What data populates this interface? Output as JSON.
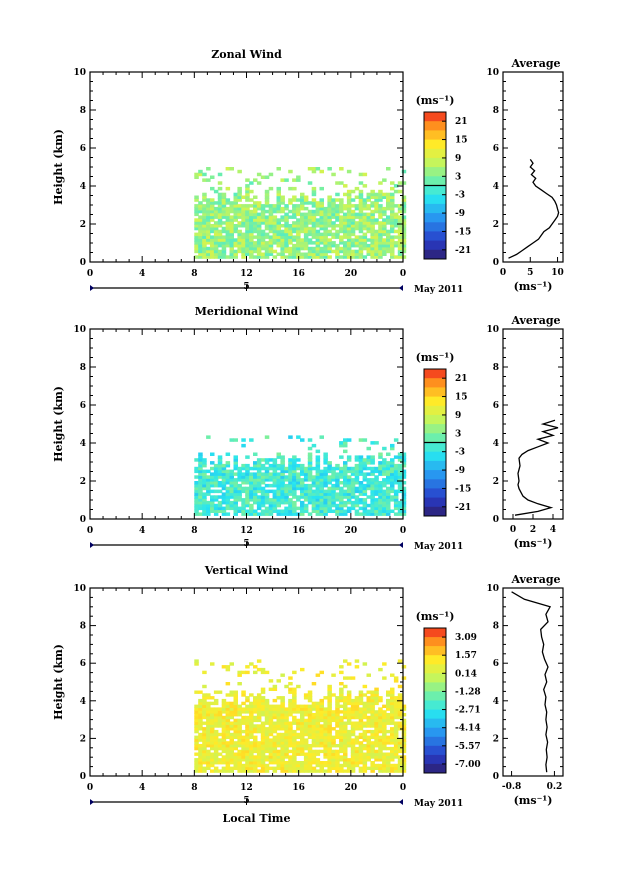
{
  "chart_data": [
    {
      "type": "heatmap",
      "title": "Zonal Wind",
      "xlabel": "",
      "ylabel": "Height (km)",
      "xlim": [
        0,
        24
      ],
      "ylim": [
        0,
        10
      ],
      "x_ticks": [
        "0",
        "4",
        "8",
        "12",
        "16",
        "20",
        "0"
      ],
      "y_ticks": [
        "0",
        "2",
        "4",
        "6",
        "8",
        "10"
      ],
      "date_axis_label": "5",
      "date_caption": "May 2011",
      "colorbar_unit": "(ms⁻¹)",
      "colorbar_ticks": [
        "21",
        "15",
        "9",
        "3",
        "-3",
        "-9",
        "-15",
        "-21"
      ],
      "colorbar_range": [
        -24,
        24
      ],
      "data_extent": {
        "x": [
          8,
          24
        ],
        "y": [
          0.2,
          5
        ]
      },
      "dominant_range": [
        0,
        9
      ],
      "average": {
        "title": "Average",
        "xlabel": "(ms⁻¹)",
        "x_ticks": [
          "0",
          "5",
          "10"
        ],
        "xlim": [
          0,
          11
        ],
        "y_ticks": [
          "0",
          "2",
          "4",
          "6",
          "8",
          "10"
        ],
        "profile": [
          [
            0.2,
            1.0
          ],
          [
            0.4,
            2.5
          ],
          [
            0.6,
            3.5
          ],
          [
            0.8,
            4.5
          ],
          [
            1.0,
            5.5
          ],
          [
            1.2,
            6.5
          ],
          [
            1.4,
            7.0
          ],
          [
            1.6,
            7.5
          ],
          [
            1.8,
            8.5
          ],
          [
            2.0,
            9.0
          ],
          [
            2.2,
            9.5
          ],
          [
            2.4,
            10.0
          ],
          [
            2.6,
            10.2
          ],
          [
            2.8,
            10.0
          ],
          [
            3.0,
            9.8
          ],
          [
            3.2,
            9.5
          ],
          [
            3.4,
            9.0
          ],
          [
            3.6,
            8.0
          ],
          [
            3.8,
            7.0
          ],
          [
            4.0,
            6.0
          ],
          [
            4.2,
            5.5
          ],
          [
            4.4,
            6.0
          ],
          [
            4.6,
            5.2
          ],
          [
            4.8,
            5.8
          ],
          [
            5.0,
            5.0
          ],
          [
            5.2,
            5.5
          ],
          [
            5.4,
            5.0
          ]
        ]
      }
    },
    {
      "type": "heatmap",
      "title": "Meridional Wind",
      "xlabel": "",
      "ylabel": "Height (km)",
      "xlim": [
        0,
        24
      ],
      "ylim": [
        0,
        10
      ],
      "x_ticks": [
        "0",
        "4",
        "8",
        "12",
        "16",
        "20",
        "0"
      ],
      "y_ticks": [
        "0",
        "2",
        "4",
        "6",
        "8",
        "10"
      ],
      "date_axis_label": "5",
      "date_caption": "May 2011",
      "colorbar_unit": "(ms⁻¹)",
      "colorbar_ticks": [
        "21",
        "15",
        "9",
        "3",
        "-3",
        "-9",
        "-15",
        "-21"
      ],
      "colorbar_range": [
        -24,
        24
      ],
      "data_extent": {
        "x": [
          8,
          24
        ],
        "y": [
          0.2,
          4.5
        ]
      },
      "dominant_range": [
        -6,
        3
      ],
      "average": {
        "title": "Average",
        "xlabel": "(ms⁻¹)",
        "x_ticks": [
          "0",
          "2",
          "4"
        ],
        "xlim": [
          -1,
          5
        ],
        "y_ticks": [
          "0",
          "2",
          "4",
          "6",
          "8",
          "10"
        ],
        "profile": [
          [
            0.2,
            0.2
          ],
          [
            0.4,
            2.5
          ],
          [
            0.6,
            3.8
          ],
          [
            0.8,
            2.5
          ],
          [
            1.0,
            1.5
          ],
          [
            1.2,
            1.0
          ],
          [
            1.4,
            0.8
          ],
          [
            1.6,
            0.6
          ],
          [
            1.8,
            0.5
          ],
          [
            2.0,
            0.6
          ],
          [
            2.4,
            0.5
          ],
          [
            2.8,
            0.7
          ],
          [
            3.2,
            0.6
          ],
          [
            3.4,
            0.9
          ],
          [
            3.6,
            1.5
          ],
          [
            3.8,
            2.5
          ],
          [
            4.0,
            3.5
          ],
          [
            4.2,
            2.5
          ],
          [
            4.4,
            4.0
          ],
          [
            4.6,
            3.0
          ],
          [
            4.8,
            4.5
          ],
          [
            5.0,
            3.0
          ],
          [
            5.2,
            4.2
          ]
        ]
      }
    },
    {
      "type": "heatmap",
      "title": "Vertical Wind",
      "xlabel": "Local Time",
      "ylabel": "Height (km)",
      "xlim": [
        0,
        24
      ],
      "ylim": [
        0,
        10
      ],
      "x_ticks": [
        "0",
        "4",
        "8",
        "12",
        "16",
        "20",
        "0"
      ],
      "y_ticks": [
        "0",
        "2",
        "4",
        "6",
        "8",
        "10"
      ],
      "date_axis_label": "5",
      "date_caption": "May 2011",
      "colorbar_unit": "(ms⁻¹)",
      "colorbar_ticks": [
        "3.09",
        "1.57",
        "0.14",
        "-1.28",
        "-2.71",
        "-4.14",
        "-5.57",
        "-7.00"
      ],
      "colorbar_range": [
        -7.7,
        3.8
      ],
      "data_extent": {
        "x": [
          8,
          24
        ],
        "y": [
          0.2,
          6.3
        ]
      },
      "dominant_range": [
        0.14,
        1.57
      ],
      "average": {
        "title": "Average",
        "xlabel": "(ms⁻¹)",
        "x_ticks": [
          "-0.8",
          "0.2"
        ],
        "xlim": [
          -1.0,
          0.4
        ],
        "y_ticks": [
          "0",
          "2",
          "4",
          "6",
          "8",
          "10"
        ],
        "profile": [
          [
            0.2,
            0.02
          ],
          [
            0.6,
            0.0
          ],
          [
            1.0,
            0.03
          ],
          [
            1.4,
            0.01
          ],
          [
            1.8,
            0.04
          ],
          [
            2.2,
            0.0
          ],
          [
            2.6,
            0.03
          ],
          [
            3.0,
            0.0
          ],
          [
            3.4,
            0.02
          ],
          [
            3.8,
            -0.02
          ],
          [
            4.2,
            0.0
          ],
          [
            4.6,
            -0.05
          ],
          [
            5.0,
            0.02
          ],
          [
            5.4,
            -0.02
          ],
          [
            5.8,
            0.05
          ],
          [
            6.2,
            -0.03
          ],
          [
            6.6,
            -0.08
          ],
          [
            7.0,
            -0.05
          ],
          [
            7.4,
            -0.1
          ],
          [
            7.8,
            -0.12
          ],
          [
            8.2,
            0.05
          ],
          [
            8.6,
            0.0
          ],
          [
            9.0,
            0.1
          ],
          [
            9.4,
            -0.5
          ],
          [
            9.8,
            -0.8
          ]
        ]
      }
    }
  ]
}
